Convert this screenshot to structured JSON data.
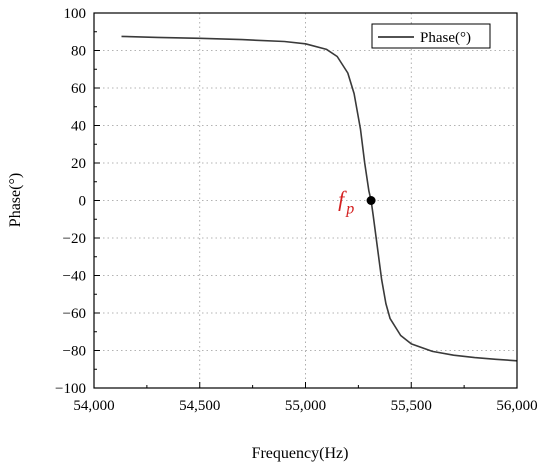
{
  "chart_data": {
    "type": "line",
    "xlabel": "Frequency(Hz)",
    "ylabel": "Phase(°)",
    "xlim": [
      54000,
      56000
    ],
    "ylim": [
      -100,
      100
    ],
    "x_ticks": [
      54000,
      54500,
      55000,
      55500,
      56000
    ],
    "x_tick_labels": [
      "54,000",
      "54,500",
      "55,000",
      "55,500",
      "56,000"
    ],
    "y_ticks": [
      -100,
      -80,
      -60,
      -40,
      -20,
      0,
      20,
      40,
      60,
      80,
      100
    ],
    "y_tick_labels": [
      "−100",
      "−80",
      "−60",
      "−40",
      "−20",
      "0",
      "20",
      "40",
      "60",
      "80",
      "100"
    ],
    "grid": true,
    "legend_position": "top-right",
    "series": [
      {
        "name": "Phase(°)",
        "color": "#3a3a3a",
        "x": [
          54130,
          54300,
          54500,
          54700,
          54900,
          55000,
          55100,
          55150,
          55200,
          55230,
          55260,
          55280,
          55300,
          55310,
          55320,
          55340,
          55360,
          55380,
          55400,
          55450,
          55500,
          55600,
          55700,
          55800,
          55900,
          56000
        ],
        "y": [
          87.5,
          87.0,
          86.5,
          85.8,
          84.8,
          83.6,
          80.6,
          76.8,
          68.0,
          57.0,
          38.0,
          20.0,
          5.0,
          0.0,
          -8.0,
          -25.0,
          -42.0,
          -55.0,
          -63.0,
          -72.0,
          -76.5,
          -80.5,
          -82.5,
          -83.8,
          -84.7,
          -85.5
        ]
      }
    ],
    "annotation": {
      "label_main": "f",
      "label_sub": "p",
      "x": 55310,
      "y": 0,
      "color": "#d42020"
    }
  }
}
